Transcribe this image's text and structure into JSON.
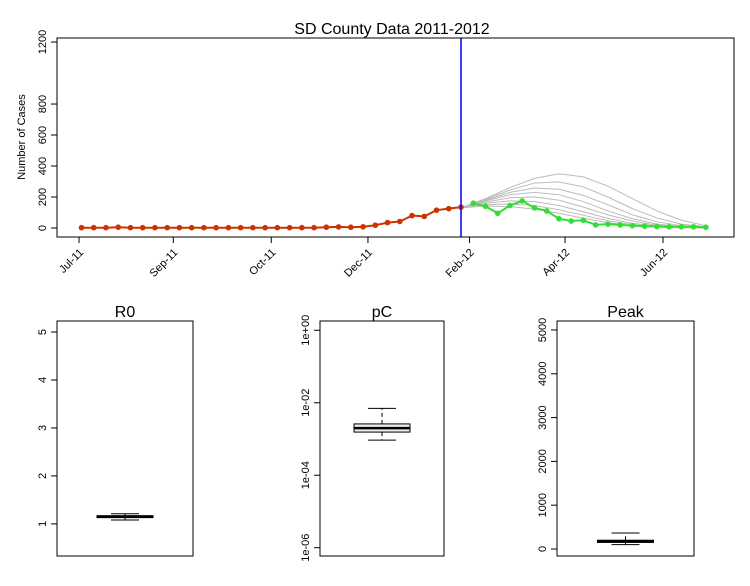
{
  "chart_data": [
    {
      "type": "line",
      "title": "SD County Data 2011-2012",
      "ylabel": "Number of Cases",
      "xlim": [
        -2,
        53.3
      ],
      "ylim": [
        -58,
        1226
      ],
      "xticks": [
        {
          "value": -0.2,
          "label": "Jul-11"
        },
        {
          "value": 7.5,
          "label": "Sep-11"
        },
        {
          "value": 15.5,
          "label": "Oct-11"
        },
        {
          "value": 23.4,
          "label": "Dec-11"
        },
        {
          "value": 31.7,
          "label": "Feb-12"
        },
        {
          "value": 39.5,
          "label": "Apr-12"
        },
        {
          "value": 47.5,
          "label": "Jun-12"
        }
      ],
      "yticks": [
        0,
        200,
        400,
        600,
        800,
        1200
      ],
      "vline": 31,
      "vline_color": "#0000ee",
      "series": [
        {
          "color": "#bbbbbb",
          "x": [
            31,
            33,
            35,
            37,
            39,
            41,
            43,
            45,
            47,
            49,
            51
          ],
          "values": [
            130,
            190,
            260,
            320,
            350,
            330,
            270,
            190,
            110,
            50,
            15
          ]
        },
        {
          "color": "#bbbbbb",
          "x": [
            31,
            33,
            35,
            37,
            39,
            41,
            43,
            45,
            47,
            49,
            51
          ],
          "values": [
            130,
            185,
            245,
            290,
            298,
            265,
            200,
            125,
            65,
            25,
            8
          ]
        },
        {
          "color": "#bbbbbb",
          "x": [
            31,
            33,
            35,
            37,
            39,
            41,
            43,
            45,
            47,
            49,
            51
          ],
          "values": [
            130,
            180,
            230,
            258,
            250,
            210,
            150,
            85,
            40,
            15,
            5
          ]
        },
        {
          "color": "#bbbbbb",
          "x": [
            31,
            33,
            35,
            37,
            39,
            41,
            43,
            45,
            47,
            49,
            51
          ],
          "values": [
            130,
            175,
            215,
            230,
            215,
            170,
            110,
            60,
            25,
            10,
            3
          ]
        },
        {
          "color": "#bbbbbb",
          "x": [
            31,
            33,
            35,
            37,
            39,
            41,
            43,
            45,
            47,
            49,
            51
          ],
          "values": [
            130,
            168,
            195,
            200,
            180,
            135,
            85,
            45,
            18,
            6,
            2
          ]
        },
        {
          "color": "#bbbbbb",
          "x": [
            31,
            33,
            35,
            37,
            39,
            41,
            43,
            45,
            47,
            49,
            51
          ],
          "values": [
            130,
            160,
            175,
            170,
            145,
            105,
            62,
            30,
            12,
            4,
            1
          ]
        },
        {
          "color": "#bbbbbb",
          "x": [
            31,
            33,
            35,
            37,
            39,
            41,
            43,
            45,
            47,
            49,
            51
          ],
          "values": [
            130,
            150,
            155,
            145,
            118,
            82,
            47,
            22,
            8,
            3,
            1
          ]
        },
        {
          "color": "#bbbbbb",
          "x": [
            31,
            33,
            35,
            37,
            39,
            41,
            43,
            45,
            47,
            49,
            51
          ],
          "values": [
            130,
            142,
            138,
            122,
            95,
            63,
            35,
            15,
            6,
            2,
            1
          ]
        },
        {
          "color": "#cc3300",
          "points": true,
          "x": [
            0,
            1,
            2,
            3,
            4,
            5,
            6,
            7,
            8,
            9,
            10,
            11,
            12,
            13,
            14,
            15,
            16,
            17,
            18,
            19,
            20,
            21,
            22,
            23,
            24,
            25,
            26,
            27,
            28,
            29,
            30,
            31
          ],
          "values": [
            2,
            2,
            2,
            5,
            2,
            2,
            2,
            2,
            2,
            2,
            2,
            2,
            2,
            2,
            2,
            2,
            2,
            2,
            2,
            2,
            5,
            7,
            5,
            8,
            18,
            35,
            42,
            80,
            75,
            115,
            125,
            135
          ]
        },
        {
          "color": "#33dd33",
          "points": true,
          "x": [
            32,
            33,
            34,
            35,
            36,
            37,
            38,
            39,
            40,
            41,
            42,
            43,
            44,
            45,
            46,
            47,
            48,
            49,
            50,
            51
          ],
          "values": [
            160,
            140,
            95,
            145,
            175,
            130,
            110,
            60,
            45,
            50,
            20,
            25,
            20,
            15,
            12,
            10,
            8,
            8,
            8,
            5
          ]
        }
      ]
    },
    {
      "type": "box",
      "title": "R0",
      "ylim": [
        0.33,
        5.23
      ],
      "yticks": [
        1,
        2,
        3,
        4,
        5
      ],
      "whisker_low": 1.08,
      "q1": 1.13,
      "median": 1.15,
      "q3": 1.17,
      "whisker_high": 1.21,
      "color": "#ffffff"
    },
    {
      "type": "box",
      "title": "pC",
      "log": true,
      "ylim": [
        5.9e-07,
        1.8
      ],
      "yticks": [
        {
          "value": 1,
          "label": "1e+00"
        },
        {
          "value": 0.01,
          "label": "1e-02"
        },
        {
          "value": 0.0001,
          "label": "1e-04"
        },
        {
          "value": 1e-06,
          "label": "1e-06"
        }
      ],
      "whisker_low": 0.00093,
      "q1": 0.00155,
      "median": 0.002,
      "q3": 0.0026,
      "whisker_high": 0.007,
      "color": "#eeeeee"
    },
    {
      "type": "box",
      "title": "Peak",
      "ylim": [
        -160,
        5205
      ],
      "yticks": [
        0,
        1000,
        2000,
        3000,
        4000,
        5000
      ],
      "whisker_low": 100,
      "q1": 150,
      "median": 175,
      "q3": 200,
      "whisker_high": 365,
      "color": "#ffffff"
    }
  ]
}
